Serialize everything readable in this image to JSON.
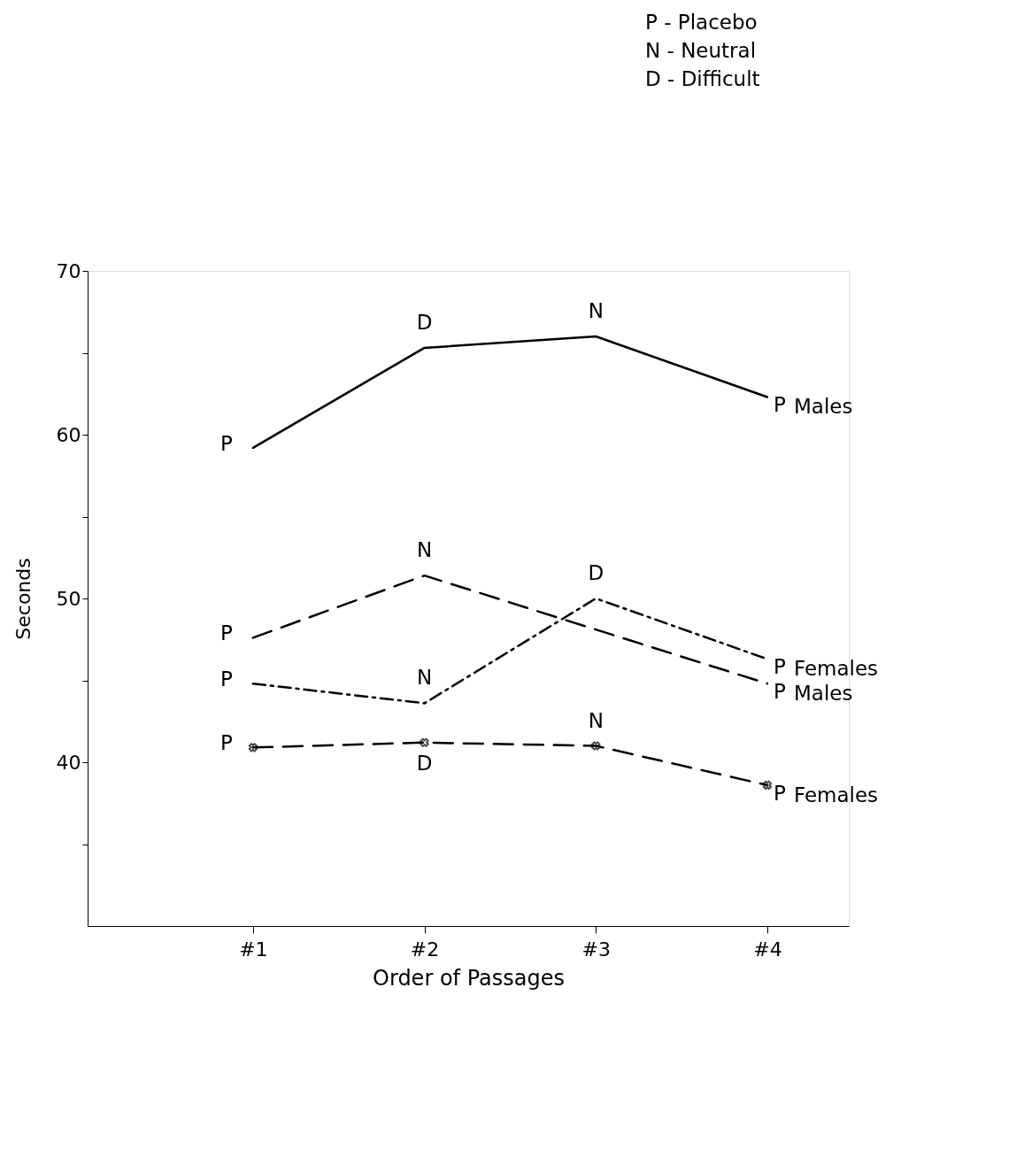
{
  "chart_data": {
    "type": "line",
    "xlabel": "Order of Passages",
    "ylabel": "Seconds",
    "categories": [
      "#1",
      "#2",
      "#3",
      "#4"
    ],
    "ylim": [
      30,
      70
    ],
    "yticks": [
      {
        "value": 35,
        "label": null
      },
      40,
      {
        "value": 45,
        "label": null
      },
      50,
      {
        "value": 55,
        "label": null
      },
      60,
      {
        "value": 65,
        "label": null
      },
      70
    ],
    "grid": false,
    "series": [
      {
        "name": "Males",
        "color": "#000000",
        "line_style": "solid",
        "marker": "none",
        "values": [
          59.2,
          65.3,
          66.0,
          62.3
        ]
      },
      {
        "name": "Males",
        "color": "#000000",
        "line_style": "dashed",
        "marker": "none",
        "values": [
          47.6,
          51.4,
          48.1,
          44.8
        ]
      },
      {
        "name": "Females",
        "color": "#000000",
        "line_style": "dashdot",
        "marker": "none",
        "values": [
          44.8,
          43.6,
          50.0,
          46.3
        ]
      },
      {
        "name": "Females",
        "color": "#000000",
        "line_style": "dashed",
        "marker": "cross",
        "values": [
          40.9,
          41.2,
          41.0,
          38.6
        ]
      }
    ],
    "annotations": [
      "P - Placebo",
      "N - Neutral",
      "D - Difficult",
      {
        "text": "P",
        "x": "#1",
        "y": 59.2
      },
      {
        "text": "D",
        "x": "#2",
        "y": 65.3
      },
      {
        "text": "N",
        "x": "#3",
        "y": 66.0
      },
      {
        "text": "P",
        "x": "#4",
        "y": 62.3
      },
      {
        "text": "P",
        "x": "#1",
        "y": 47.6
      },
      {
        "text": "N",
        "x": "#2",
        "y": 51.4
      },
      {
        "text": "D",
        "x": "#3",
        "y": 50.0
      },
      {
        "text": "P",
        "x": "#4",
        "y": 44.8
      },
      {
        "text": "P",
        "x": "#1",
        "y": 44.8
      },
      {
        "text": "N",
        "x": "#2",
        "y": 43.6
      },
      {
        "text": "P",
        "x": "#4",
        "y": 46.3
      },
      {
        "text": "P",
        "x": "#1",
        "y": 40.9
      },
      {
        "text": "D",
        "x": "#2",
        "y": 41.2
      },
      {
        "text": "N",
        "x": "#3",
        "y": 41.0
      },
      {
        "text": "P",
        "x": "#4",
        "y": 38.6
      }
    ]
  }
}
